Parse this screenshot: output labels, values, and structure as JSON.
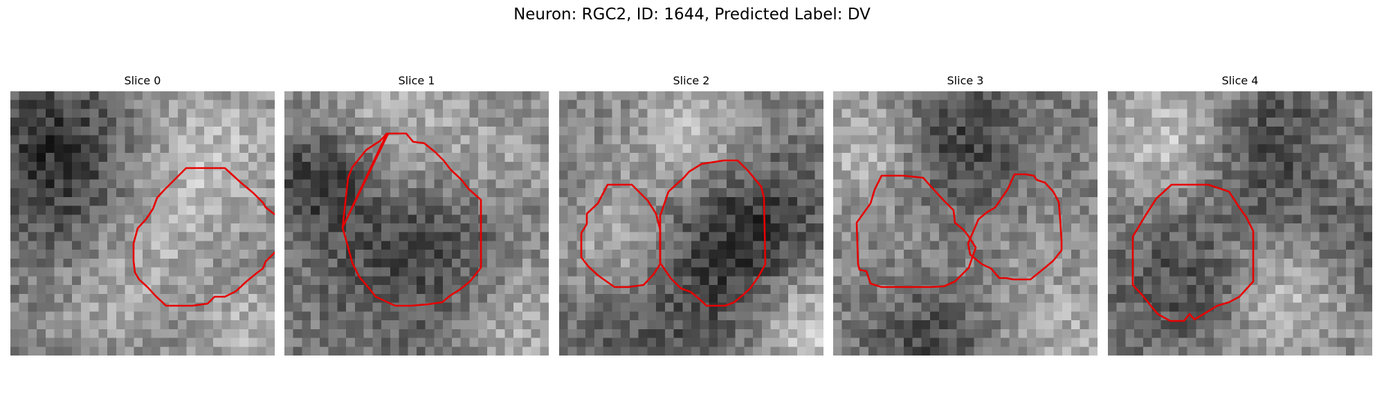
{
  "figure": {
    "title": "Neuron: RGC2, ID: 1644, Predicted Label: DV"
  },
  "colors": {
    "contour": "#e60000",
    "colormap": "gray"
  },
  "panels": [
    {
      "title": "Slice 0",
      "contour_count": 1
    },
    {
      "title": "Slice 1",
      "contour_count": 1
    },
    {
      "title": "Slice 2",
      "contour_count": 2
    },
    {
      "title": "Slice 3",
      "contour_count": 2
    },
    {
      "title": "Slice 4",
      "contour_count": 1
    }
  ]
}
